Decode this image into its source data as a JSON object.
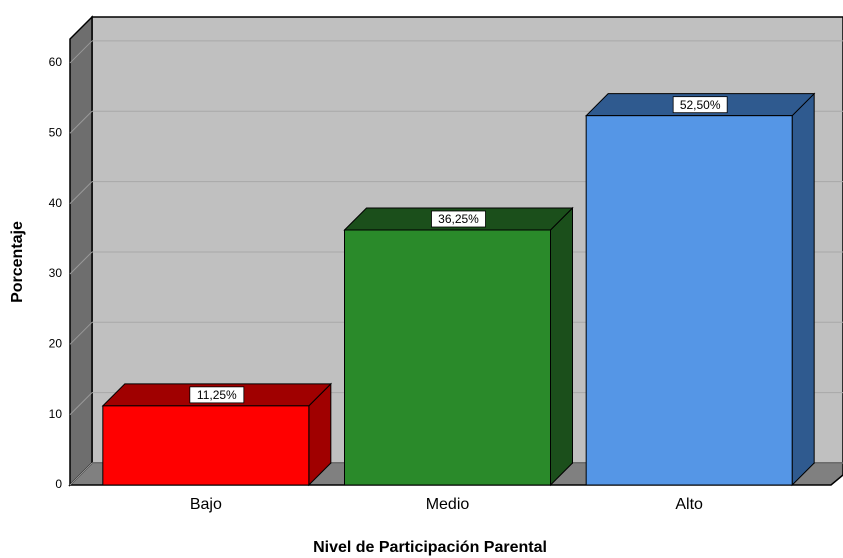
{
  "chart_data": {
    "type": "bar3d",
    "x_label": "Nivel de Participación Parental",
    "y_label": "Porcentaje",
    "categories": [
      "Bajo",
      "Medio",
      "Alto"
    ],
    "values": [
      11.25,
      36.25,
      52.5
    ],
    "value_labels": [
      "11,25%",
      "36,25%",
      "52,50%"
    ],
    "colors": [
      "#ff0000",
      "#2a8a2a",
      "#5596e6"
    ],
    "side_colors": [
      "#a00000",
      "#1b4f1b",
      "#2f5a8f"
    ],
    "ylim": [
      0,
      63.4
    ],
    "yticks": [
      0,
      10,
      20,
      30,
      40,
      50,
      60
    ],
    "grid": true
  }
}
